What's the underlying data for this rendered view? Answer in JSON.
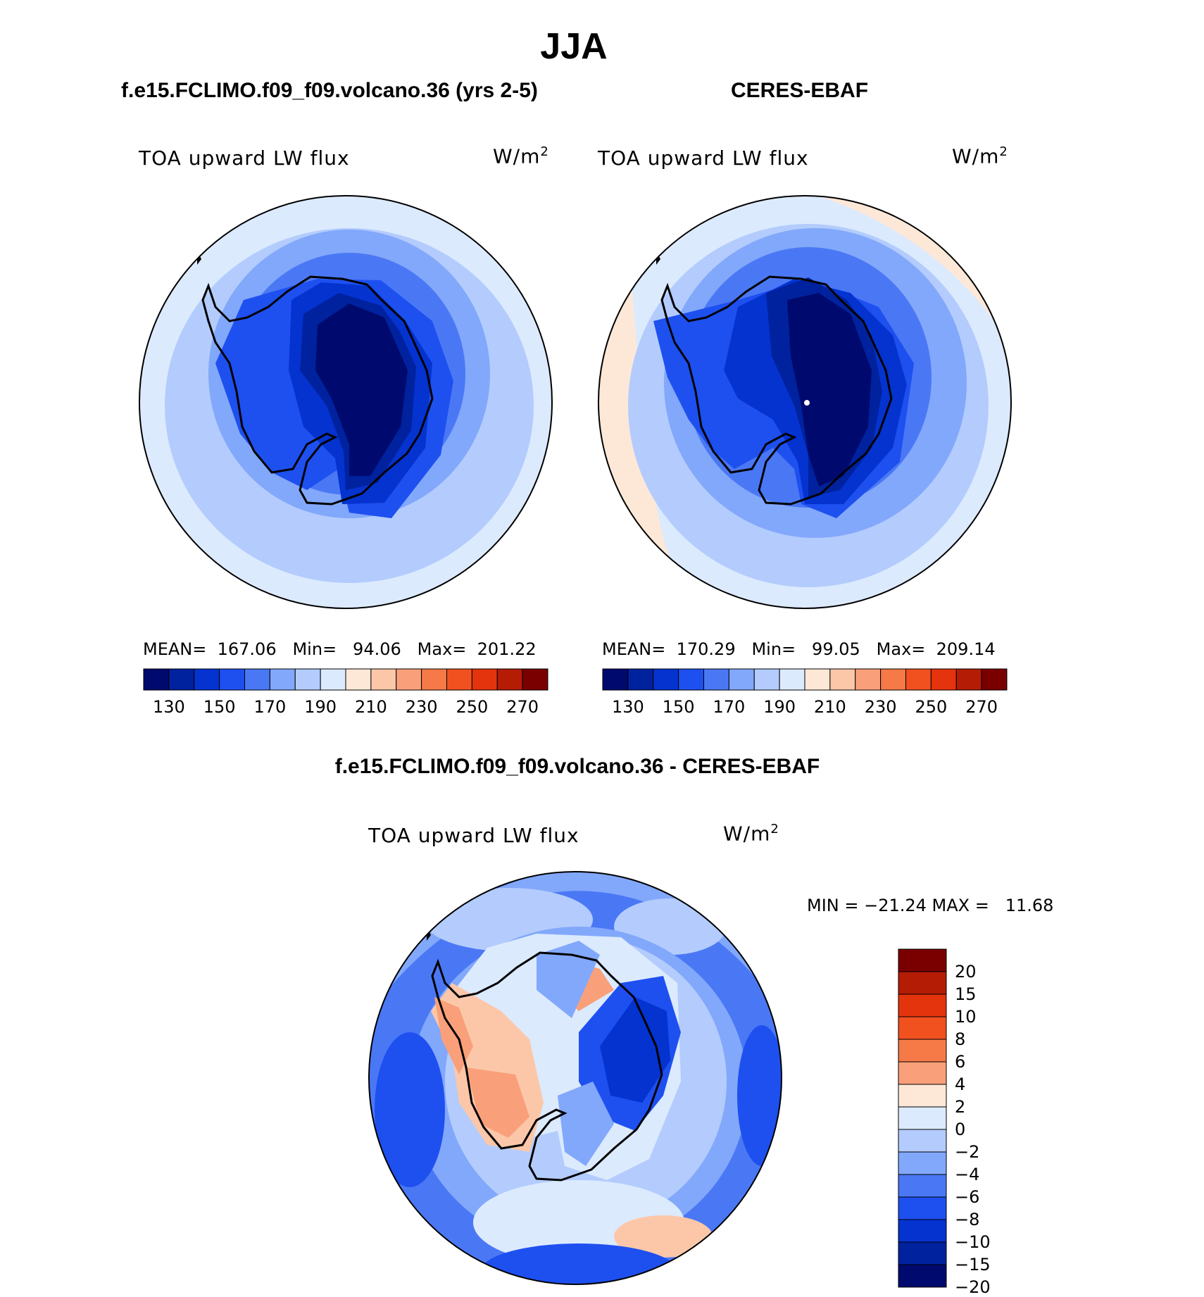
{
  "title": "JJA",
  "panels": {
    "model": {
      "subtitle": "f.e15.FCLIMO.f09_f09.volcano.36 (yrs 2-5)",
      "variable": "TOA upward LW flux",
      "units_base": "W/m",
      "units_exp": "2",
      "stats": "MEAN=  167.06   Min=   94.06   Max=  201.22",
      "mean": 167.06,
      "min": 94.06,
      "max": 201.22
    },
    "obs": {
      "subtitle": "CERES-EBAF",
      "variable": "TOA upward LW flux",
      "units_base": "W/m",
      "units_exp": "2",
      "stats": "MEAN=  170.29   Min=   99.05   Max=  209.14",
      "mean": 170.29,
      "min": 99.05,
      "max": 209.14
    },
    "diff": {
      "subtitle": "f.e15.FCLIMO.f09_f09.volcano.36 - CERES-EBAF",
      "variable": "TOA upward LW flux",
      "units_base": "W/m",
      "units_exp": "2",
      "stats": "MIN = −21.24 MAX =   11.68",
      "min": -21.24,
      "max": 11.68
    }
  },
  "colorbar_abs": {
    "tick_labels": [
      "130",
      "150",
      "170",
      "190",
      "210",
      "230",
      "250",
      "270"
    ],
    "colors": [
      "#000a6e",
      "#00229e",
      "#0433d0",
      "#1e50f0",
      "#4a78f5",
      "#82a8fb",
      "#b3ccfd",
      "#dceafe",
      "#fde8d7",
      "#fcc7a9",
      "#f9a07a",
      "#f57a48",
      "#f1511f",
      "#e3340e",
      "#b41c06",
      "#7a0000"
    ]
  },
  "colorbar_diff": {
    "tick_labels": [
      "20",
      "15",
      "10",
      "8",
      "6",
      "4",
      "2",
      "0",
      "−2",
      "−4",
      "−6",
      "−8",
      "−10",
      "−15",
      "−20"
    ],
    "colors": [
      "#7a0000",
      "#b41c06",
      "#e3340e",
      "#f1511f",
      "#f57a48",
      "#f9a07a",
      "#fde8d7",
      "#dceafe",
      "#b3ccfd",
      "#82a8fb",
      "#4a78f5",
      "#1e50f0",
      "#0433d0",
      "#00229e",
      "#000a6e"
    ]
  }
}
